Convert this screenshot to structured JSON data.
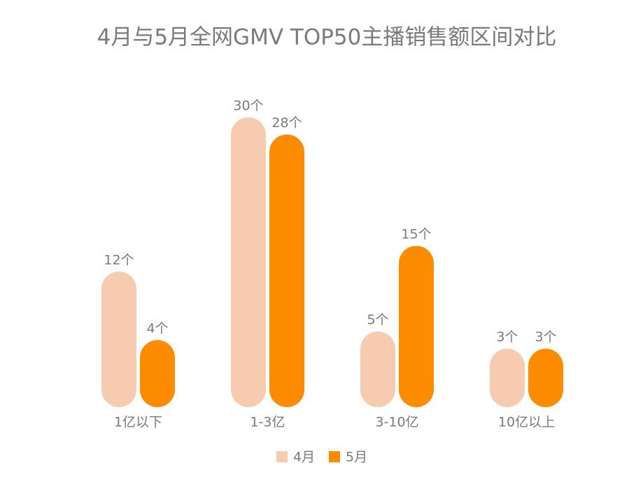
{
  "chart_data": {
    "type": "bar",
    "title": "4月与5月全网GMV TOP50主播销售额区间对比",
    "categories": [
      "1亿以下",
      "1-3亿",
      "3-10亿",
      "10亿以上"
    ],
    "series": [
      {
        "name": "4月",
        "color": "#f7cbb0",
        "values": [
          12,
          30,
          5,
          3
        ],
        "value_labels": [
          "12个",
          "30个",
          "5个",
          "3个"
        ]
      },
      {
        "name": "5月",
        "color": "#ff8c00",
        "values": [
          4,
          28,
          15,
          3
        ],
        "value_labels": [
          "4个",
          "28个",
          "15个",
          "3个"
        ]
      }
    ],
    "legend": "bottom"
  }
}
